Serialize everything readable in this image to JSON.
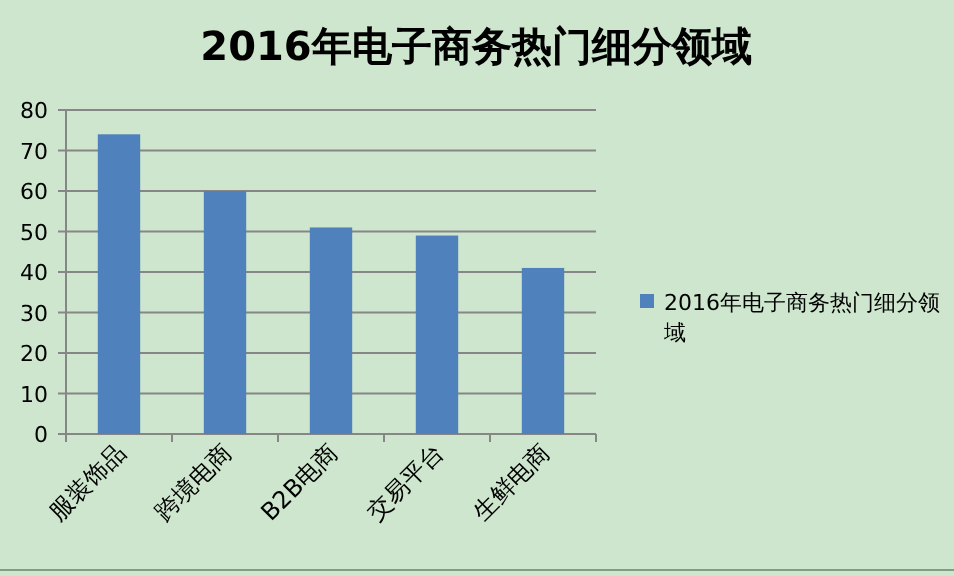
{
  "chart_data": {
    "type": "bar",
    "title": "2016年电子商务热门细分领域",
    "categories": [
      "服装饰品",
      "跨境电商",
      "B2B电商",
      "交易平台",
      "生鲜电商"
    ],
    "series": [
      {
        "name": "2016年电子商务热门细分领域",
        "color": "#4f81bd",
        "values": [
          74,
          60,
          51,
          49,
          41
        ]
      }
    ],
    "ylim": [
      0,
      80
    ],
    "yticks": [
      0,
      10,
      20,
      30,
      40,
      50,
      60,
      70,
      80
    ],
    "grid": "y",
    "legend": "right"
  }
}
